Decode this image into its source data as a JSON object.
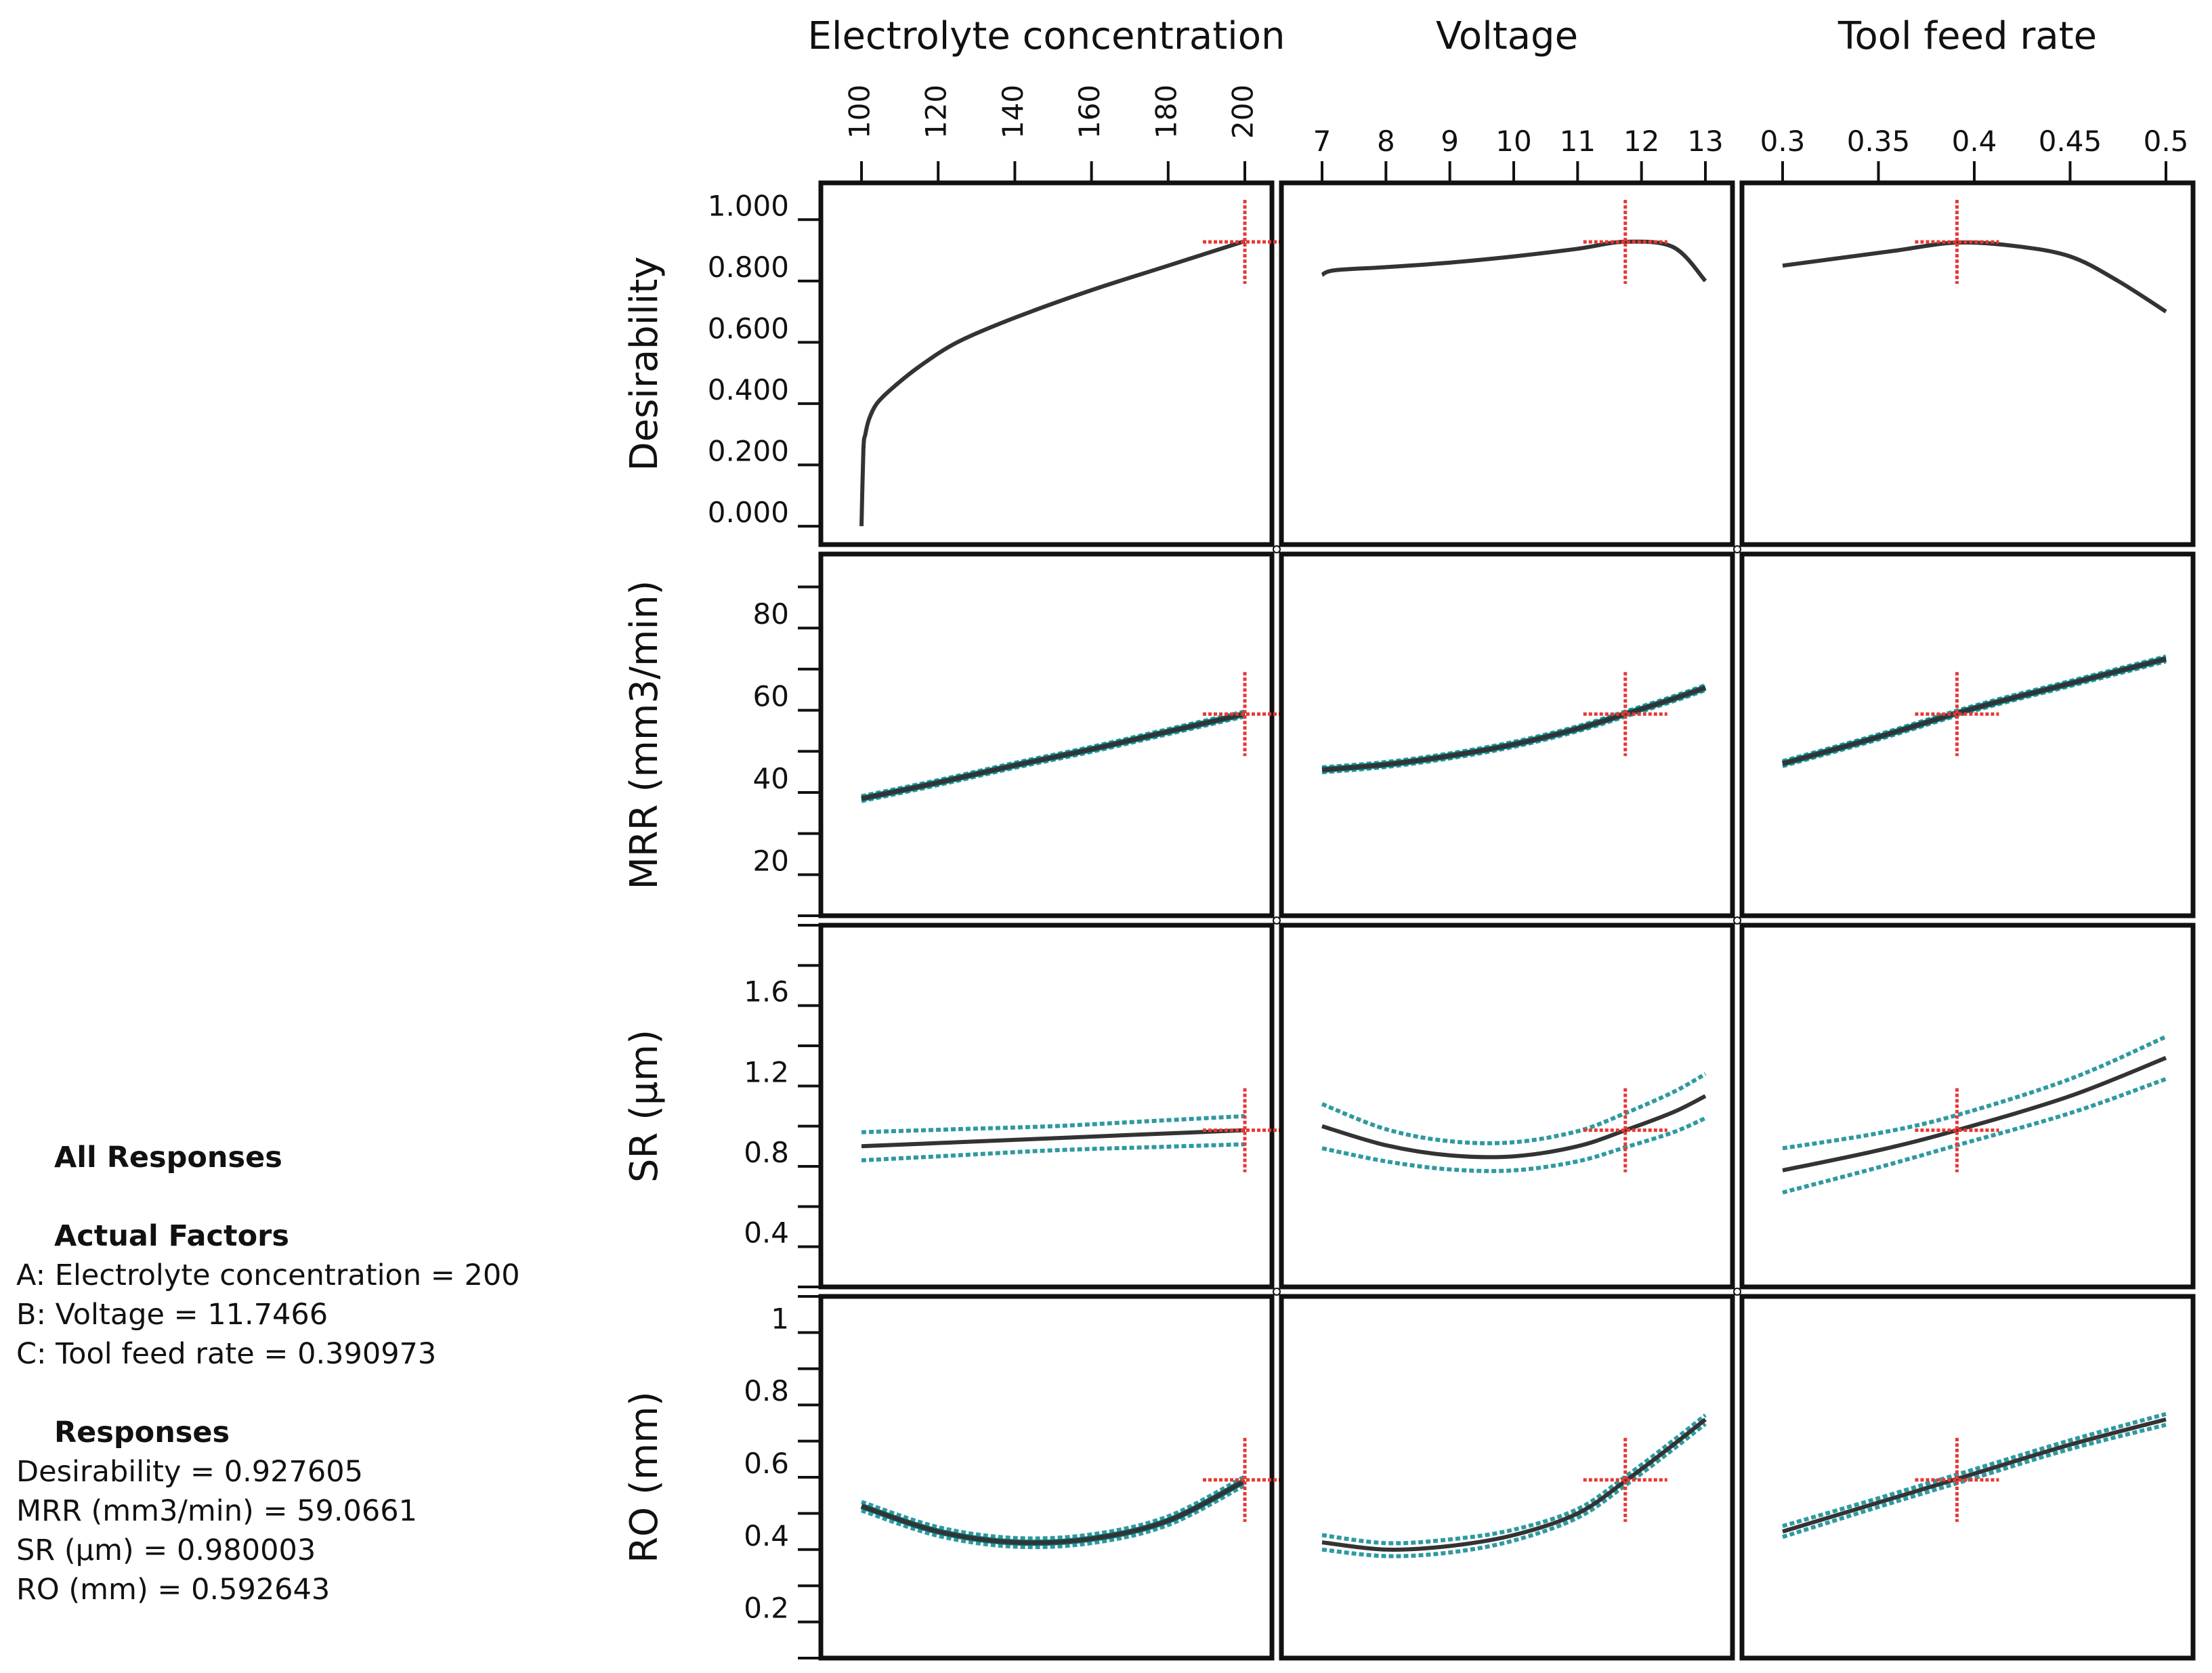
{
  "chart_data": {
    "type": "line",
    "title": "All Responses",
    "factors": [
      {
        "key": "A",
        "name": "Electrolyte concentration",
        "min": 100,
        "max": 200,
        "ticks": [
          100,
          120,
          140,
          160,
          180,
          200
        ],
        "tick_labels": [
          "100",
          "120",
          "140",
          "160",
          "180",
          "200"
        ],
        "current": 200,
        "current_label": "200"
      },
      {
        "key": "B",
        "name": "Voltage",
        "min": 7,
        "max": 13,
        "ticks": [
          7,
          8,
          9,
          10,
          11,
          12,
          13
        ],
        "tick_labels": [
          "7",
          "8",
          "9",
          "10",
          "11",
          "12",
          "13"
        ],
        "current": 11.7466,
        "current_label": "11.7466"
      },
      {
        "key": "C",
        "name": "Tool feed rate",
        "min": 0.3,
        "max": 0.5,
        "ticks": [
          0.3,
          0.35,
          0.4,
          0.45,
          0.5
        ],
        "tick_labels": [
          "0.3",
          "0.35",
          "0.4",
          "0.45",
          "0.5"
        ],
        "current": 0.390973,
        "current_label": "0.390973"
      }
    ],
    "responses": [
      {
        "name": "Desirability",
        "ymin": -0.06,
        "ymax": 1.12,
        "ticks": [
          0,
          0.2,
          0.4,
          0.6,
          0.8,
          1.0
        ],
        "tick_labels": [
          "0.000",
          "0.200",
          "0.400",
          "0.600",
          "0.800",
          "1.000"
        ],
        "minor_step": 0,
        "current": 0.927605,
        "current_label": "0.927605",
        "band": false
      },
      {
        "name": "MRR (mm3/min)",
        "ymin": 10,
        "ymax": 98,
        "ticks": [
          20,
          40,
          60,
          80
        ],
        "tick_labels": [
          "20",
          "40",
          "60",
          "80"
        ],
        "minor_step": 10,
        "current": 59.0661,
        "current_label": "59.0661",
        "band": true
      },
      {
        "name": "SR (µm)",
        "ymin": 0.2,
        "ymax": 2.0,
        "ticks": [
          0.4,
          0.8,
          1.2,
          1.6
        ],
        "tick_labels": [
          "0.4",
          "0.8",
          "1.2",
          "1.6"
        ],
        "minor_step": 0.2,
        "current": 0.980003,
        "current_label": "0.980003",
        "band": true
      },
      {
        "name": "RO (mm)",
        "ymin": 0.1,
        "ymax": 1.1,
        "ticks": [
          0.2,
          0.4,
          0.6,
          0.8,
          1
        ],
        "tick_labels": [
          "0.2",
          "0.4",
          "0.6",
          "0.8",
          "1"
        ],
        "minor_step": 0.1,
        "current": 0.592643,
        "current_label": "0.592643",
        "band": true
      }
    ],
    "curves": [
      [
        {
          "x": [
            100,
            100.5,
            101,
            102,
            104,
            108,
            115,
            125,
            140,
            160,
            180,
            200
          ],
          "y": [
            0.0,
            0.25,
            0.3,
            0.35,
            0.4,
            0.45,
            0.52,
            0.6,
            0.68,
            0.77,
            0.85,
            0.93
          ]
        },
        {
          "x": [
            7,
            7.2,
            8,
            9,
            10,
            11,
            11.75,
            12.5,
            13
          ],
          "y": [
            0.82,
            0.835,
            0.845,
            0.86,
            0.88,
            0.905,
            0.928,
            0.91,
            0.8
          ]
        },
        {
          "x": [
            0.3,
            0.33,
            0.36,
            0.39,
            0.42,
            0.45,
            0.475,
            0.5
          ],
          "y": [
            0.85,
            0.875,
            0.9,
            0.925,
            0.915,
            0.88,
            0.8,
            0.7
          ]
        }
      ],
      [
        {
          "x": [
            100,
            120,
            140,
            160,
            180,
            200
          ],
          "y": [
            38.5,
            42.4,
            46.6,
            50.5,
            54.8,
            59.1
          ],
          "w": [
            0.6,
            0.6,
            0.6,
            0.6,
            0.6,
            0.6
          ]
        },
        {
          "x": [
            7,
            8,
            9,
            10,
            11,
            11.75,
            12.5,
            13
          ],
          "y": [
            45.5,
            46.8,
            48.9,
            51.7,
            55.5,
            59.1,
            62.8,
            65.5
          ],
          "w": [
            0.6,
            0.6,
            0.6,
            0.6,
            0.6,
            0.6,
            0.6,
            0.6
          ]
        },
        {
          "x": [
            0.3,
            0.35,
            0.4,
            0.45,
            0.5
          ],
          "y": [
            47,
            53.5,
            60.5,
            66.5,
            72.5
          ],
          "w": [
            0.6,
            0.6,
            0.6,
            0.6,
            0.6
          ]
        }
      ],
      [
        {
          "x": [
            100,
            125,
            150,
            175,
            200
          ],
          "y": [
            0.9,
            0.92,
            0.94,
            0.96,
            0.98
          ],
          "w": [
            0.07,
            0.065,
            0.06,
            0.065,
            0.07
          ]
        },
        {
          "x": [
            7,
            8,
            9,
            10,
            11,
            11.75,
            12.5,
            13
          ],
          "y": [
            1.0,
            0.905,
            0.855,
            0.85,
            0.9,
            0.98,
            1.07,
            1.15
          ],
          "w": [
            0.11,
            0.08,
            0.07,
            0.07,
            0.075,
            0.085,
            0.1,
            0.11
          ]
        },
        {
          "x": [
            0.3,
            0.35,
            0.391,
            0.45,
            0.5
          ],
          "y": [
            0.78,
            0.88,
            0.98,
            1.15,
            1.34
          ],
          "w": [
            0.11,
            0.085,
            0.075,
            0.085,
            0.105
          ]
        }
      ],
      [
        {
          "x": [
            100,
            120,
            140,
            160,
            180,
            200
          ],
          "y": [
            0.52,
            0.45,
            0.42,
            0.43,
            0.48,
            0.59
          ],
          "w": [
            0.012,
            0.012,
            0.012,
            0.012,
            0.012,
            0.012
          ]
        },
        {
          "x": [
            7,
            8,
            9,
            10,
            11,
            11.75,
            12.5,
            13
          ],
          "y": [
            0.42,
            0.4,
            0.41,
            0.44,
            0.5,
            0.59,
            0.69,
            0.76
          ],
          "w": [
            0.02,
            0.018,
            0.018,
            0.015,
            0.012,
            0.012,
            0.012,
            0.012
          ]
        },
        {
          "x": [
            0.3,
            0.35,
            0.4,
            0.45,
            0.5
          ],
          "y": [
            0.45,
            0.53,
            0.61,
            0.69,
            0.76
          ],
          "w": [
            0.015,
            0.012,
            0.012,
            0.012,
            0.015
          ]
        }
      ]
    ]
  },
  "info": {
    "heading": "All Responses",
    "factors_heading": "Actual Factors",
    "factor_lines": [
      "A: Electrolyte concentration = 200",
      "B: Voltage = 11.7466",
      "C: Tool feed rate = 0.390973"
    ],
    "responses_heading": "Responses",
    "response_lines": [
      "Desirability = 0.927605",
      "MRR (mm3/min) = 59.0661",
      "SR (µm) = 0.980003",
      "RO (mm) = 0.592643"
    ]
  },
  "colors": {
    "curve": "#333333",
    "band": "#2e9aa0",
    "band_fill": "#0a6e74",
    "marker": "#e53935",
    "frame": "#111111"
  }
}
